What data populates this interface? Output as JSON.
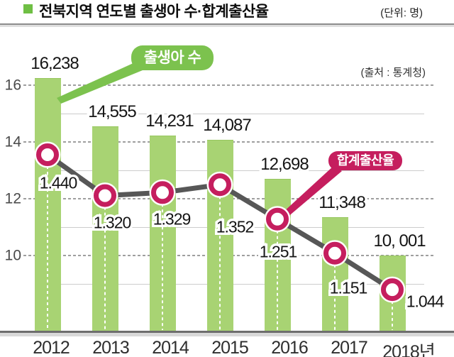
{
  "header": {
    "title": "전북지역 연도별 출생아 수·합계출산율",
    "unit_label": "(단위: 명)",
    "source_label": "(출처 : 통계청)"
  },
  "colors": {
    "bar_green": "#a8d373",
    "callout_green": "#7cc24e",
    "magenta": "#c51e5e",
    "line_gray": "#575757",
    "grid_major": "#9f9f9f",
    "grid_minor": "#cccccc"
  },
  "chart_data": {
    "type": "bar+line",
    "title": "전북지역 연도별 출생아 수·합계출산율",
    "unit": "명",
    "source": "통계청",
    "categories": [
      "2012",
      "2013",
      "2014",
      "2015",
      "2016",
      "2017",
      "2018년"
    ],
    "series": [
      {
        "name": "출생아 수",
        "type": "bar",
        "values": [
          16238,
          14555,
          14231,
          14087,
          12698,
          11348,
          10001
        ],
        "labels": [
          "16,238",
          "14,555",
          "14,231",
          "14,087",
          "12,698",
          "11,348",
          "10, 001"
        ]
      },
      {
        "name": "합계출산율",
        "type": "line",
        "values": [
          1.44,
          1.32,
          1.329,
          1.352,
          1.251,
          1.151,
          1.044
        ],
        "labels": [
          "1.440",
          "1.320",
          "1.329",
          "1.352",
          "1.251",
          "1.151",
          "1.044"
        ]
      }
    ],
    "y_axis": {
      "tick_labels": [
        "16",
        "14",
        "12",
        "10"
      ],
      "tick_values": [
        16,
        14,
        12,
        10
      ],
      "minor_values": [
        15,
        13,
        11,
        9
      ],
      "unit_thousands": true
    },
    "grid": "dashed-major-solid-minor",
    "legend_position": "callouts-inline"
  }
}
